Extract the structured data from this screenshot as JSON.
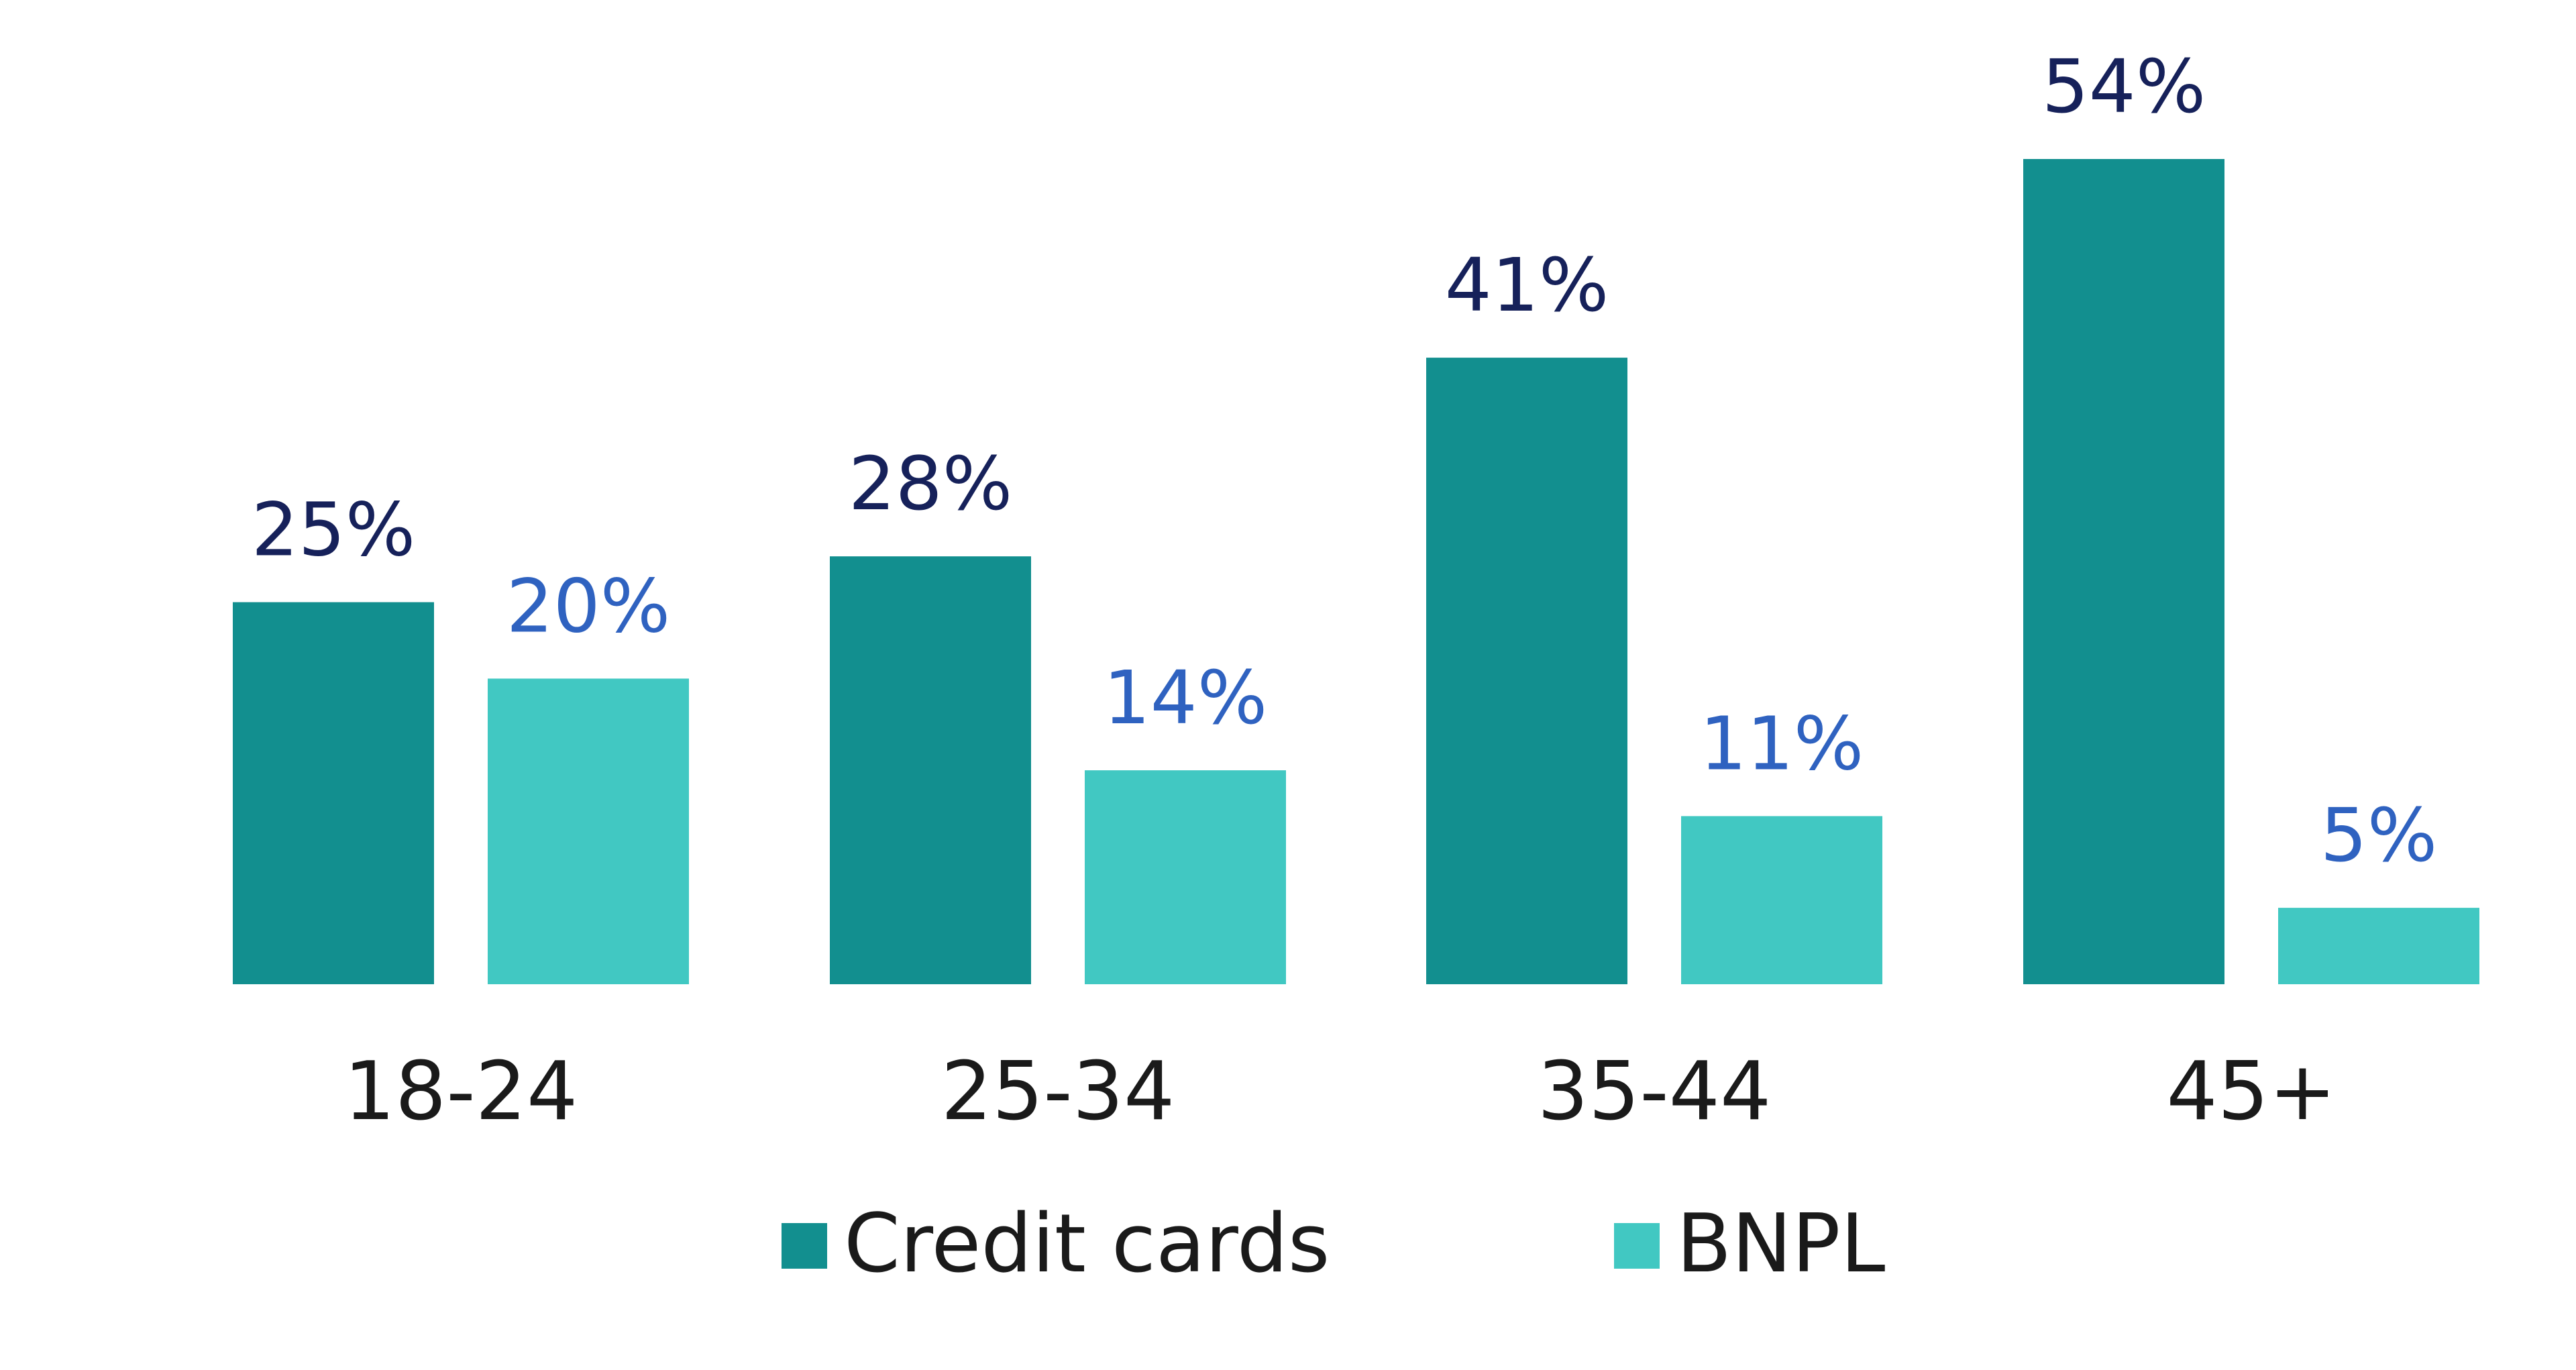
{
  "chart_data": {
    "type": "bar",
    "categories": [
      "18-24",
      "25-34",
      "35-44",
      "45+"
    ],
    "series": [
      {
        "name": "Credit cards",
        "values": [
          25,
          28,
          41,
          54
        ],
        "labels": [
          "25%",
          "28%",
          "41%",
          "54%"
        ],
        "color": "#128f8f",
        "label_color": "#16215a"
      },
      {
        "name": "BNPL",
        "values": [
          20,
          14,
          11,
          5
        ],
        "labels": [
          "20%",
          "14%",
          "11%",
          "5%"
        ],
        "color": "#41c8c2",
        "label_color": "#2f62c0"
      }
    ],
    "ylim": [
      0,
      54
    ],
    "grid": false,
    "legend_position": "bottom-center"
  }
}
